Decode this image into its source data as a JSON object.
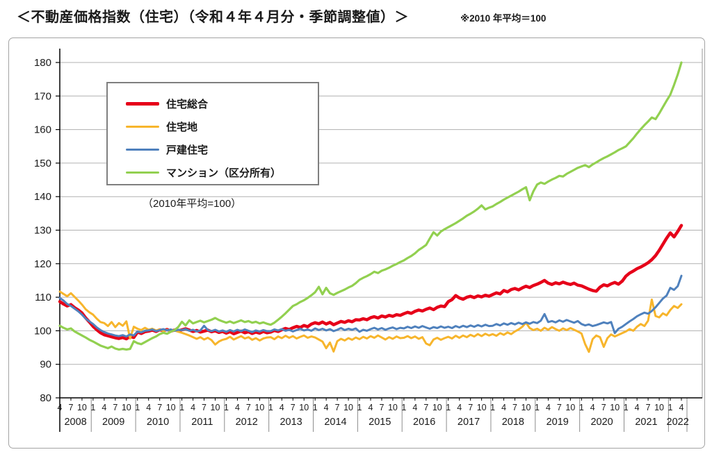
{
  "page": {
    "title": "＜不動産価格指数（住宅）（令和４年４月分・季節調整値）＞",
    "note": "※2010 年平均＝100"
  },
  "chart_data": {
    "type": "line",
    "subtitle_note": "（2010年平均=100）",
    "ylim": [
      80,
      180
    ],
    "y_step": 10,
    "grid": "horizontal-only",
    "legend_position": "top-left",
    "x_unit": "month",
    "x_start": "2008-04",
    "x_end": "2022-04",
    "x_axis_years": [
      {
        "label": "2008",
        "months": [
          "4",
          "7",
          "10"
        ]
      },
      {
        "label": "2009",
        "months": [
          "1",
          "4",
          "7",
          "10"
        ]
      },
      {
        "label": "2010",
        "months": [
          "1",
          "4",
          "7",
          "10"
        ]
      },
      {
        "label": "2011",
        "months": [
          "1",
          "4",
          "7",
          "10"
        ]
      },
      {
        "label": "2012",
        "months": [
          "1",
          "4",
          "7",
          "10"
        ]
      },
      {
        "label": "2013",
        "months": [
          "1",
          "4",
          "7",
          "10"
        ]
      },
      {
        "label": "2014",
        "months": [
          "1",
          "4",
          "7",
          "10"
        ]
      },
      {
        "label": "2015",
        "months": [
          "1",
          "4",
          "7",
          "10"
        ]
      },
      {
        "label": "2016",
        "months": [
          "1",
          "4",
          "7",
          "10"
        ]
      },
      {
        "label": "2017",
        "months": [
          "1",
          "4",
          "7",
          "10"
        ]
      },
      {
        "label": "2018",
        "months": [
          "1",
          "4",
          "7",
          "10"
        ]
      },
      {
        "label": "2019",
        "months": [
          "1",
          "4",
          "7",
          "10"
        ]
      },
      {
        "label": "2020",
        "months": [
          "1",
          "4",
          "7",
          "10"
        ]
      },
      {
        "label": "2021",
        "months": [
          "1",
          "4",
          "7",
          "10"
        ]
      },
      {
        "label": "2022",
        "months": [
          "1",
          "4"
        ]
      }
    ],
    "series": [
      {
        "name": "住宅総合",
        "color": "#e60019",
        "width": 4.5,
        "values": [
          108.7,
          108.0,
          107.4,
          107.8,
          106.9,
          106.2,
          105.3,
          103.8,
          102.6,
          101.3,
          100.3,
          99.4,
          98.8,
          98.5,
          98.2,
          97.9,
          97.7,
          98.0,
          97.6,
          98.3,
          98.0,
          99.6,
          99.2,
          99.7,
          99.9,
          100.2,
          99.8,
          100.3,
          100.0,
          100.4,
          99.9,
          100.2,
          100.0,
          100.3,
          100.6,
          100.2,
          99.8,
          100.1,
          99.6,
          99.9,
          100.2,
          99.7,
          100.0,
          99.5,
          99.8,
          99.3,
          99.7,
          99.1,
          99.5,
          99.9,
          99.4,
          99.7,
          99.2,
          99.6,
          99.3,
          99.8,
          99.4,
          99.6,
          100.1,
          99.8,
          100.3,
          100.7,
          100.4,
          100.9,
          101.3,
          101.0,
          101.6,
          101.2,
          102.0,
          102.4,
          102.1,
          102.6,
          102.0,
          102.5,
          101.8,
          102.3,
          102.8,
          102.5,
          103.0,
          102.7,
          103.3,
          103.2,
          103.6,
          103.3,
          103.9,
          104.2,
          103.8,
          104.4,
          104.1,
          104.6,
          104.3,
          104.8,
          104.6,
          105.1,
          105.5,
          105.2,
          105.8,
          106.2,
          105.9,
          106.4,
          106.8,
          106.3,
          107.0,
          107.4,
          107.2,
          108.7,
          109.3,
          110.5,
          109.8,
          109.4,
          110.0,
          110.3,
          109.9,
          110.4,
          110.1,
          110.6,
          110.3,
          110.8,
          111.3,
          111.0,
          112.0,
          111.6,
          112.3,
          112.6,
          112.2,
          112.8,
          113.3,
          112.9,
          113.5,
          113.9,
          114.4,
          115.0,
          114.2,
          113.8,
          114.3,
          114.0,
          114.5,
          114.1,
          113.8,
          114.2,
          113.6,
          113.4,
          112.9,
          112.4,
          112.0,
          111.8,
          113.0,
          113.7,
          113.4,
          114.0,
          114.4,
          113.9,
          114.8,
          116.3,
          117.2,
          117.8,
          118.5,
          119.0,
          119.6,
          120.3,
          121.2,
          122.4,
          124.0,
          125.8,
          127.6,
          129.2,
          128.0,
          129.6,
          131.4
        ]
      },
      {
        "name": "住宅地",
        "color": "#f7b52c",
        "width": 3,
        "values": [
          111.7,
          111.0,
          110.3,
          111.2,
          110.1,
          109.0,
          107.8,
          106.4,
          105.5,
          104.8,
          103.6,
          102.6,
          102.3,
          101.4,
          102.6,
          101.1,
          102.3,
          101.5,
          102.8,
          97.7,
          101.2,
          100.6,
          100.2,
          100.9,
          100.3,
          100.6,
          100.1,
          100.4,
          99.9,
          100.3,
          99.8,
          100.1,
          99.7,
          99.4,
          99.0,
          98.6,
          98.1,
          97.6,
          98.1,
          97.4,
          97.9,
          97.2,
          95.9,
          96.8,
          97.3,
          97.6,
          98.2,
          97.4,
          97.9,
          98.4,
          97.7,
          98.1,
          97.3,
          97.8,
          97.1,
          97.7,
          98.0,
          98.1,
          97.5,
          98.3,
          97.8,
          98.5,
          97.9,
          98.4,
          97.7,
          98.2,
          98.6,
          97.9,
          98.3,
          98.0,
          97.4,
          96.8,
          94.8,
          96.5,
          93.8,
          96.9,
          97.6,
          97.1,
          97.8,
          97.3,
          98.0,
          97.5,
          98.2,
          97.7,
          98.4,
          97.9,
          98.6,
          98.0,
          97.4,
          98.1,
          97.6,
          98.3,
          97.8,
          97.9,
          98.4,
          97.8,
          98.3,
          97.6,
          98.1,
          96.2,
          95.7,
          97.4,
          97.9,
          97.3,
          97.8,
          98.2,
          97.7,
          98.5,
          97.9,
          98.6,
          98.1,
          98.8,
          98.3,
          99.0,
          98.4,
          99.1,
          98.6,
          99.0,
          98.5,
          99.3,
          98.8,
          99.5,
          99.0,
          99.8,
          100.4,
          101.2,
          102.4,
          100.8,
          100.2,
          100.6,
          100.0,
          100.9,
          100.3,
          101.1,
          100.5,
          100.0,
          100.7,
          100.2,
          100.8,
          100.3,
          99.8,
          99.2,
          96.0,
          93.7,
          97.5,
          98.6,
          98.1,
          95.2,
          97.8,
          98.9,
          98.3,
          98.8,
          99.3,
          99.8,
          100.5,
          100.0,
          101.2,
          102.0,
          101.4,
          103.0,
          109.3,
          104.4,
          104.0,
          105.2,
          104.6,
          106.2,
          107.4,
          106.8,
          107.9
        ]
      },
      {
        "name": "戸建住宅",
        "color": "#4f81bd",
        "width": 3,
        "values": [
          109.8,
          109.0,
          108.0,
          107.4,
          106.6,
          105.8,
          104.8,
          103.6,
          102.8,
          102.0,
          101.0,
          100.2,
          99.6,
          99.2,
          98.9,
          98.6,
          98.4,
          98.7,
          98.3,
          98.9,
          98.6,
          99.8,
          99.5,
          100.0,
          100.1,
          100.4,
          99.9,
          100.2,
          100.5,
          100.1,
          100.4,
          100.0,
          100.3,
          100.2,
          100.5,
          100.0,
          100.3,
          99.8,
          100.1,
          101.5,
          100.2,
          99.9,
          100.3,
          99.8,
          100.1,
          99.7,
          100.2,
          99.8,
          100.3,
          99.9,
          100.4,
          100.0,
          99.6,
          100.1,
          99.8,
          100.2,
          99.9,
          99.9,
          100.4,
          100.1,
          100.5,
          100.0,
          100.3,
          99.8,
          100.2,
          100.6,
          100.1,
          100.4,
          100.0,
          100.7,
          100.2,
          100.6,
          100.1,
          100.5,
          99.9,
          100.3,
          100.8,
          100.2,
          100.6,
          100.3,
          100.7,
          99.7,
          100.3,
          100.0,
          100.5,
          100.9,
          100.4,
          100.8,
          100.3,
          100.7,
          101.0,
          100.5,
          100.9,
          100.7,
          101.2,
          100.8,
          101.3,
          100.9,
          101.4,
          101.0,
          100.6,
          101.1,
          100.8,
          101.3,
          100.9,
          101.2,
          100.8,
          101.4,
          101.0,
          101.5,
          101.1,
          101.6,
          101.2,
          101.7,
          101.3,
          101.8,
          101.4,
          101.5,
          102.0,
          101.6,
          102.2,
          101.8,
          102.3,
          101.9,
          102.4,
          102.0,
          102.5,
          102.1,
          102.6,
          102.3,
          103.0,
          105.0,
          102.6,
          102.9,
          102.5,
          103.1,
          102.7,
          103.2,
          102.8,
          102.4,
          102.9,
          102.0,
          101.6,
          101.9,
          101.4,
          101.7,
          102.1,
          102.5,
          102.2,
          102.6,
          99.3,
          100.6,
          101.2,
          102.0,
          102.8,
          103.5,
          104.3,
          104.9,
          105.4,
          105.1,
          105.9,
          107.0,
          108.3,
          109.6,
          110.5,
          112.8,
          112.2,
          113.3,
          116.4
        ]
      },
      {
        "name": "マンション（区分所有）",
        "color": "#92d050",
        "width": 3.2,
        "values": [
          101.5,
          100.9,
          100.4,
          100.7,
          99.8,
          99.2,
          98.6,
          98.0,
          97.3,
          96.8,
          96.2,
          95.6,
          95.2,
          94.8,
          95.3,
          94.7,
          94.4,
          94.6,
          94.4,
          94.6,
          96.9,
          96.3,
          96.0,
          96.6,
          97.2,
          97.8,
          98.3,
          99.0,
          99.4,
          99.1,
          99.7,
          100.2,
          101.1,
          102.7,
          101.6,
          103.1,
          102.2,
          102.6,
          103.0,
          102.5,
          102.9,
          103.3,
          103.8,
          103.2,
          102.8,
          102.4,
          102.8,
          102.3,
          102.7,
          103.1,
          102.6,
          102.9,
          102.4,
          102.7,
          102.2,
          102.5,
          102.1,
          101.8,
          102.4,
          103.3,
          104.2,
          105.2,
          106.3,
          107.4,
          107.9,
          108.6,
          109.1,
          109.8,
          110.6,
          111.5,
          113.1,
          110.9,
          112.8,
          111.2,
          110.7,
          111.3,
          111.8,
          112.3,
          112.9,
          113.4,
          114.2,
          115.2,
          115.8,
          116.3,
          116.9,
          117.6,
          117.2,
          117.9,
          118.3,
          118.8,
          119.4,
          119.9,
          120.5,
          121.0,
          121.7,
          122.3,
          123.1,
          124.1,
          124.8,
          125.6,
          127.5,
          129.4,
          128.4,
          129.6,
          130.3,
          130.9,
          131.5,
          132.1,
          132.8,
          133.5,
          134.3,
          134.9,
          135.6,
          136.4,
          137.4,
          136.2,
          136.7,
          137.1,
          137.8,
          138.4,
          139.1,
          139.7,
          140.3,
          140.9,
          141.5,
          142.2,
          142.8,
          138.9,
          141.6,
          143.6,
          144.2,
          143.8,
          144.5,
          145.1,
          145.6,
          146.2,
          146.0,
          146.8,
          147.4,
          148.0,
          148.6,
          149.0,
          149.4,
          148.8,
          149.6,
          150.2,
          150.9,
          151.5,
          152.0,
          152.6,
          153.2,
          153.9,
          154.4,
          155.0,
          156.2,
          157.4,
          158.8,
          160.1,
          161.3,
          162.4,
          163.6,
          163.1,
          164.8,
          166.7,
          168.6,
          170.4,
          173.3,
          176.4,
          180.0
        ]
      }
    ],
    "style": {
      "grid_color": "#b0b0b0",
      "axis_color": "#000000",
      "divider_color": "#8c8c8c",
      "right_border_color": "#aaaaaa",
      "tick_label_color": "#1a1a1a"
    }
  }
}
